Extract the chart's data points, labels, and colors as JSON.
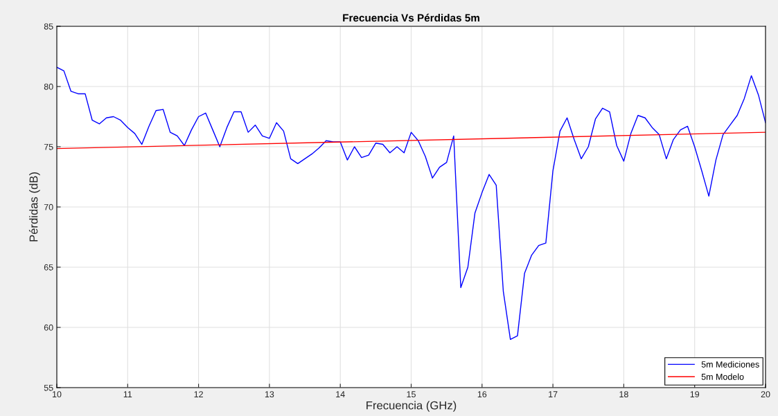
{
  "chart_data": {
    "type": "line",
    "title": "Frecuencia Vs Pérdidas 5m",
    "xlabel": "Frecuencia (GHz)",
    "ylabel": "Pérdidas (dB)",
    "xlim": [
      10,
      20
    ],
    "xticks": [
      10,
      11,
      12,
      13,
      14,
      15,
      16,
      17,
      18,
      19,
      20
    ],
    "ylim": [
      55,
      85
    ],
    "yticks": [
      55,
      60,
      65,
      70,
      75,
      80,
      85
    ],
    "grid": true,
    "legend": "bottom right",
    "series": [
      {
        "name": "5m Mediciones",
        "color": "#0000ff",
        "x": [
          10.0,
          10.1,
          10.2,
          10.3,
          10.4,
          10.5,
          10.6,
          10.7,
          10.8,
          10.9,
          11.0,
          11.1,
          11.2,
          11.3,
          11.4,
          11.5,
          11.6,
          11.7,
          11.8,
          11.9,
          12.0,
          12.1,
          12.2,
          12.3,
          12.4,
          12.5,
          12.6,
          12.7,
          12.8,
          12.9,
          13.0,
          13.1,
          13.2,
          13.3,
          13.4,
          13.5,
          13.6,
          13.7,
          13.8,
          13.9,
          14.0,
          14.1,
          14.2,
          14.3,
          14.4,
          14.5,
          14.6,
          14.7,
          14.8,
          14.9,
          15.0,
          15.1,
          15.2,
          15.3,
          15.4,
          15.5,
          15.6,
          15.7,
          15.8,
          15.9,
          16.0,
          16.1,
          16.2,
          16.3,
          16.4,
          16.5,
          16.6,
          16.7,
          16.8,
          16.9,
          17.0,
          17.1,
          17.2,
          17.3,
          17.4,
          17.5,
          17.6,
          17.7,
          17.8,
          17.9,
          18.0,
          18.1,
          18.2,
          18.3,
          18.4,
          18.5,
          18.6,
          18.7,
          18.8,
          18.9,
          19.0,
          19.1,
          19.2,
          19.3,
          19.4,
          19.5,
          19.6,
          19.7,
          19.8,
          19.9,
          20.0
        ],
        "values": [
          81.6,
          81.3,
          79.6,
          79.4,
          79.4,
          77.2,
          76.9,
          77.4,
          77.5,
          77.2,
          76.6,
          76.1,
          75.2,
          76.7,
          78.0,
          78.1,
          76.2,
          75.9,
          75.1,
          76.4,
          77.5,
          77.8,
          76.4,
          75.0,
          76.6,
          77.9,
          77.9,
          76.2,
          76.8,
          75.9,
          75.7,
          77.0,
          76.3,
          74.0,
          73.6,
          74.0,
          74.4,
          74.9,
          75.5,
          75.4,
          75.4,
          73.9,
          75.0,
          74.1,
          74.3,
          75.3,
          75.2,
          74.5,
          75.0,
          74.5,
          76.2,
          75.5,
          74.2,
          72.4,
          73.3,
          73.7,
          75.9,
          63.3,
          65.0,
          69.5,
          71.2,
          72.7,
          71.8,
          63.0,
          59.0,
          59.3,
          64.5,
          66.0,
          66.8,
          67.0,
          73.0,
          76.3,
          77.4,
          75.6,
          74.0,
          75.0,
          77.3,
          78.2,
          77.9,
          75.1,
          73.8,
          76.1,
          77.6,
          77.4,
          76.6,
          76.0,
          74.0,
          75.6,
          76.4,
          76.7,
          75.0,
          73.0,
          70.9,
          73.9,
          76.0,
          76.8,
          77.6,
          79.0,
          80.9,
          79.3,
          77.0
        ]
      },
      {
        "name": "5m Modelo",
        "color": "#ff0000",
        "x": [
          10,
          20
        ],
        "values": [
          74.85,
          76.2
        ]
      }
    ]
  }
}
